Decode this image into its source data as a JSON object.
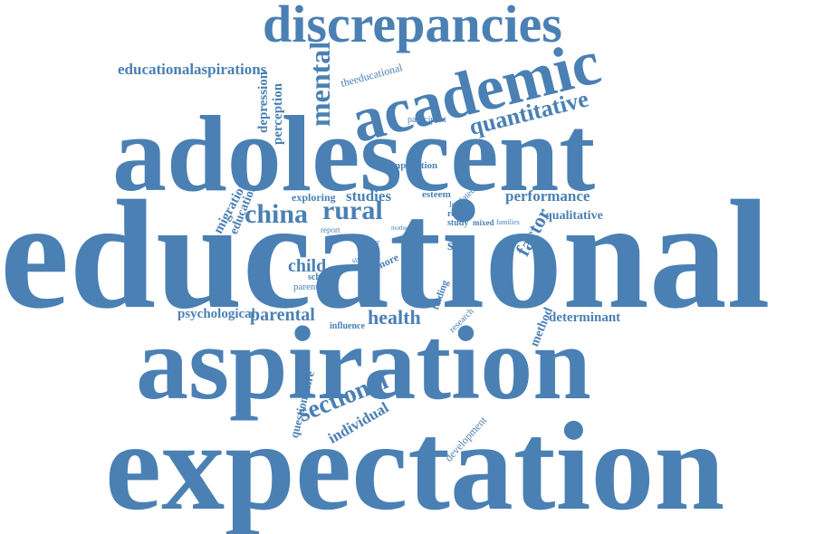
{
  "color": "#4a80b4",
  "words": {
    "discrepancies": "discrepancies",
    "educationalaspirations": "educationalaspirations",
    "academic": "academic",
    "mental": "mental",
    "theeducational": "theeducational",
    "depression": "depression",
    "perception": "perception",
    "quantitative": "quantitative",
    "participant": "participant",
    "adolescent": "adolescent",
    "implication": "implication",
    "migration": "migration",
    "education": "education",
    "exploring": "exploring",
    "studies": "studies",
    "esteem": "esteem",
    "related": "related",
    "performance": "performance",
    "china": "china",
    "rural": "rural",
    "lower": "lower",
    "result": "result",
    "study": "study",
    "mixed": "mixed",
    "families": "families",
    "factor": "factor",
    "qualitative": "qualitative",
    "interview": "interview",
    "report": "report",
    "mother": "mother",
    "aged": "aged",
    "poorer": "poorer",
    "depth": "depth",
    "left": "left",
    "self": "self",
    "educational": "educational",
    "student": "student",
    "more": "more",
    "child": "child",
    "cross": "cross",
    "school": "school",
    "higher": "higher",
    "parent": "parent",
    "chinese": "chinese",
    "finding": "finding",
    "psychological": "psychological",
    "parental": "parental",
    "health": "health",
    "research": "research",
    "method": "method",
    "determinant": "determinant",
    "influence": "influence",
    "aspiration": "aspiration",
    "questionnaire": "questionnaire",
    "sectional": "sectional",
    "individual": "individual",
    "development": "development",
    "expectation": "expectation"
  }
}
